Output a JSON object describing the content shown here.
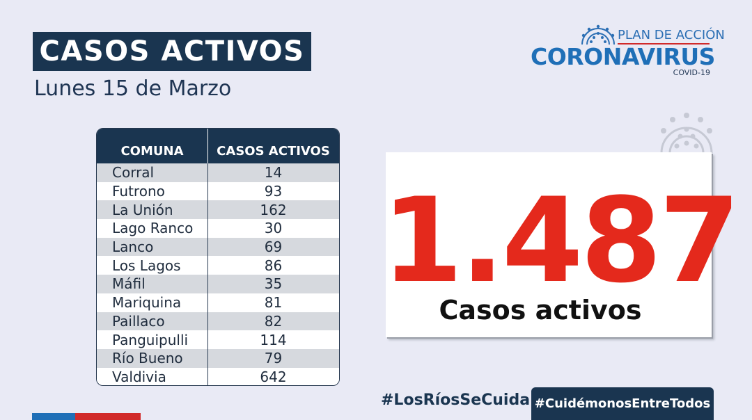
{
  "header": {
    "title": "CASOS ACTIVOS",
    "date": "Lunes 15 de Marzo"
  },
  "logo": {
    "plan": "PLAN DE ACCIÓN",
    "name": "CORONAVIRUS",
    "sub": "COVID-19",
    "icon": "virus-icon"
  },
  "table": {
    "headers": [
      "COMUNA",
      "CASOS ACTIVOS"
    ],
    "rows": [
      {
        "comuna": "Corral",
        "casos": "14"
      },
      {
        "comuna": "Futrono",
        "casos": "93"
      },
      {
        "comuna": "La Unión",
        "casos": "162"
      },
      {
        "comuna": "Lago Ranco",
        "casos": "30"
      },
      {
        "comuna": "Lanco",
        "casos": "69"
      },
      {
        "comuna": "Los Lagos",
        "casos": "86"
      },
      {
        "comuna": "Máfil",
        "casos": "35"
      },
      {
        "comuna": "Mariquina",
        "casos": "81"
      },
      {
        "comuna": "Paillaco",
        "casos": "82"
      },
      {
        "comuna": "Panguipulli",
        "casos": "114"
      },
      {
        "comuna": "Río Bueno",
        "casos": "79"
      },
      {
        "comuna": "Valdivia",
        "casos": "642"
      }
    ]
  },
  "total": {
    "number": "1.487",
    "label": "Casos activos"
  },
  "footer": {
    "hashtag_left": "#LosRíosSeCuida",
    "hashtag_right": "#CuidémonosEntreTodos"
  },
  "colors": {
    "navy": "#1a3550",
    "blue": "#1f6fb7",
    "red": "#e4291c",
    "background": "#e9eaf5"
  }
}
